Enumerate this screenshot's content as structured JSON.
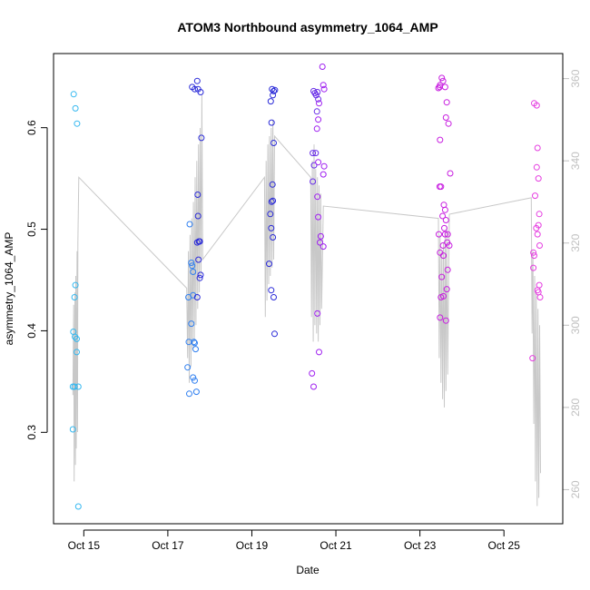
{
  "chart_data": {
    "type": "scatter",
    "title": "ATOM3 Northbound asymmetry_1064_AMP",
    "xlabel": "Date",
    "ylabel": "asymmetry_1064_AMP",
    "x_unit": "days (October)",
    "xlim": [
      14.28,
      26.4
    ],
    "ylim": [
      0.21,
      0.673
    ],
    "y2lim": [
      251.7,
      366.1
    ],
    "x_ticks": [
      {
        "value": 15,
        "label": "Oct 15"
      },
      {
        "value": 17,
        "label": "Oct 17"
      },
      {
        "value": 19,
        "label": "Oct 19"
      },
      {
        "value": 21,
        "label": "Oct 21"
      },
      {
        "value": 23,
        "label": "Oct 23"
      },
      {
        "value": 25,
        "label": "Oct 25"
      }
    ],
    "y_ticks": [
      0.3,
      0.4,
      0.5,
      0.6
    ],
    "y2_ticks": [
      260,
      280,
      300,
      320,
      340,
      360
    ],
    "grid": false,
    "point_colors": [
      "#35b8f0",
      "#2f7ff0",
      "#2a2ad8",
      "#6a2fe8",
      "#9f1ff0",
      "#c81ee0",
      "#e53ee0"
    ],
    "line_color": "#c8c8c8",
    "series": [
      {
        "color": "#35b8f0",
        "points": [
          [
            14.76,
            0.633
          ],
          [
            14.8,
            0.619
          ],
          [
            14.84,
            0.604
          ],
          [
            14.8,
            0.445
          ],
          [
            14.78,
            0.433
          ],
          [
            14.75,
            0.399
          ],
          [
            14.79,
            0.394
          ],
          [
            14.83,
            0.392
          ],
          [
            14.83,
            0.379
          ],
          [
            14.74,
            0.345
          ],
          [
            14.78,
            0.345
          ],
          [
            14.87,
            0.345
          ],
          [
            14.74,
            0.303
          ],
          [
            14.87,
            0.227
          ]
        ]
      },
      {
        "color": "#2f7ff0",
        "points": [
          [
            17.52,
            0.505
          ],
          [
            17.56,
            0.467
          ],
          [
            17.58,
            0.464
          ],
          [
            17.6,
            0.458
          ],
          [
            17.49,
            0.433
          ],
          [
            17.6,
            0.435
          ],
          [
            17.56,
            0.407
          ],
          [
            17.5,
            0.389
          ],
          [
            17.62,
            0.389
          ],
          [
            17.64,
            0.388
          ],
          [
            17.66,
            0.382
          ],
          [
            17.47,
            0.364
          ],
          [
            17.6,
            0.354
          ],
          [
            17.64,
            0.351
          ],
          [
            17.51,
            0.338
          ],
          [
            17.68,
            0.34
          ]
        ]
      },
      {
        "color": "#2a2ad8",
        "points": [
          [
            17.58,
            0.64
          ],
          [
            17.64,
            0.638
          ],
          [
            17.7,
            0.646
          ],
          [
            17.72,
            0.638
          ],
          [
            17.78,
            0.635
          ],
          [
            17.8,
            0.59
          ],
          [
            17.71,
            0.534
          ],
          [
            17.72,
            0.513
          ],
          [
            17.7,
            0.487
          ],
          [
            17.74,
            0.488
          ],
          [
            17.76,
            0.488
          ],
          [
            17.73,
            0.47
          ],
          [
            17.78,
            0.455
          ],
          [
            17.76,
            0.452
          ],
          [
            17.7,
            0.433
          ]
        ]
      },
      {
        "color": "#2a2ad8",
        "points": [
          [
            19.48,
            0.638
          ],
          [
            19.52,
            0.636
          ],
          [
            19.55,
            0.637
          ],
          [
            19.5,
            0.632
          ],
          [
            19.45,
            0.626
          ],
          [
            19.47,
            0.605
          ],
          [
            19.52,
            0.585
          ],
          [
            19.49,
            0.544
          ],
          [
            19.47,
            0.527
          ],
          [
            19.5,
            0.528
          ],
          [
            19.44,
            0.515
          ],
          [
            19.46,
            0.501
          ],
          [
            19.5,
            0.492
          ],
          [
            19.41,
            0.466
          ],
          [
            19.46,
            0.44
          ],
          [
            19.52,
            0.433
          ],
          [
            19.54,
            0.397
          ]
        ]
      },
      {
        "color": "#6a2fe8",
        "points": [
          [
            20.47,
            0.636
          ],
          [
            20.5,
            0.634
          ],
          [
            20.53,
            0.632
          ],
          [
            20.56,
            0.635
          ],
          [
            20.58,
            0.628
          ],
          [
            20.55,
            0.616
          ],
          [
            20.45,
            0.575
          ],
          [
            20.52,
            0.575
          ],
          [
            20.48,
            0.563
          ],
          [
            20.45,
            0.547
          ]
        ]
      },
      {
        "color": "#9f1ff0",
        "points": [
          [
            20.68,
            0.66
          ],
          [
            20.7,
            0.642
          ],
          [
            20.72,
            0.638
          ],
          [
            20.6,
            0.624
          ],
          [
            20.58,
            0.608
          ],
          [
            20.55,
            0.599
          ],
          [
            20.58,
            0.566
          ],
          [
            20.72,
            0.562
          ],
          [
            20.7,
            0.554
          ],
          [
            20.56,
            0.532
          ],
          [
            20.58,
            0.512
          ],
          [
            20.64,
            0.493
          ],
          [
            20.62,
            0.487
          ],
          [
            20.7,
            0.483
          ],
          [
            20.56,
            0.417
          ],
          [
            20.6,
            0.379
          ],
          [
            20.43,
            0.358
          ],
          [
            20.47,
            0.345
          ]
        ]
      },
      {
        "color": "#c81ee0",
        "points": [
          [
            23.48,
            0.642
          ],
          [
            23.52,
            0.649
          ],
          [
            23.55,
            0.646
          ],
          [
            23.6,
            0.64
          ],
          [
            23.44,
            0.639
          ],
          [
            23.47,
            0.64
          ],
          [
            23.64,
            0.625
          ],
          [
            23.62,
            0.61
          ],
          [
            23.68,
            0.604
          ],
          [
            23.48,
            0.588
          ],
          [
            23.72,
            0.555
          ],
          [
            23.47,
            0.542
          ],
          [
            23.5,
            0.542
          ],
          [
            23.57,
            0.524
          ],
          [
            23.6,
            0.519
          ],
          [
            23.54,
            0.513
          ],
          [
            23.62,
            0.509
          ],
          [
            23.58,
            0.501
          ],
          [
            23.45,
            0.495
          ],
          [
            23.6,
            0.495
          ],
          [
            23.66,
            0.495
          ],
          [
            23.65,
            0.487
          ],
          [
            23.55,
            0.484
          ],
          [
            23.7,
            0.484
          ],
          [
            23.48,
            0.477
          ],
          [
            23.56,
            0.474
          ],
          [
            23.66,
            0.46
          ],
          [
            23.52,
            0.453
          ],
          [
            23.64,
            0.441
          ],
          [
            23.56,
            0.434
          ],
          [
            23.5,
            0.433
          ],
          [
            23.48,
            0.413
          ],
          [
            23.62,
            0.41
          ]
        ]
      },
      {
        "color": "#e53ee0",
        "points": [
          [
            25.72,
            0.624
          ],
          [
            25.78,
            0.622
          ],
          [
            25.8,
            0.58
          ],
          [
            25.78,
            0.561
          ],
          [
            25.82,
            0.55
          ],
          [
            25.74,
            0.533
          ],
          [
            25.84,
            0.515
          ],
          [
            25.82,
            0.504
          ],
          [
            25.77,
            0.501
          ],
          [
            25.8,
            0.495
          ],
          [
            25.85,
            0.484
          ],
          [
            25.7,
            0.477
          ],
          [
            25.72,
            0.474
          ],
          [
            25.7,
            0.462
          ],
          [
            25.84,
            0.445
          ],
          [
            25.8,
            0.44
          ],
          [
            25.82,
            0.438
          ],
          [
            25.86,
            0.433
          ],
          [
            25.68,
            0.373
          ]
        ]
      }
    ],
    "line_series": {
      "axis": "right",
      "color": "#c8c8c8",
      "points": [
        [
          14.74,
          283
        ],
        [
          14.76,
          305
        ],
        [
          14.77,
          262
        ],
        [
          14.79,
          308
        ],
        [
          14.8,
          266
        ],
        [
          14.81,
          312
        ],
        [
          14.82,
          270
        ],
        [
          14.84,
          318
        ],
        [
          14.85,
          274
        ],
        [
          14.86,
          320
        ],
        [
          14.88,
          336
        ],
        [
          17.45,
          309
        ],
        [
          17.47,
          292
        ],
        [
          17.49,
          318
        ],
        [
          17.51,
          286
        ],
        [
          17.53,
          322
        ],
        [
          17.55,
          290
        ],
        [
          17.57,
          326
        ],
        [
          17.59,
          294
        ],
        [
          17.61,
          330
        ],
        [
          17.63,
          296
        ],
        [
          17.65,
          336
        ],
        [
          17.67,
          300
        ],
        [
          17.69,
          340
        ],
        [
          17.71,
          304
        ],
        [
          17.73,
          344
        ],
        [
          17.75,
          308
        ],
        [
          17.77,
          348
        ],
        [
          17.79,
          312
        ],
        [
          17.81,
          356
        ],
        [
          17.83,
          316
        ],
        [
          19.3,
          336
        ],
        [
          19.32,
          302
        ],
        [
          19.34,
          340
        ],
        [
          19.36,
          306
        ],
        [
          19.38,
          344
        ],
        [
          19.4,
          310
        ],
        [
          19.42,
          346
        ],
        [
          19.44,
          312
        ],
        [
          19.46,
          348
        ],
        [
          19.48,
          314
        ],
        [
          19.5,
          350
        ],
        [
          19.52,
          316
        ],
        [
          19.54,
          346
        ],
        [
          20.4,
          336
        ],
        [
          20.42,
          302
        ],
        [
          20.44,
          340
        ],
        [
          20.46,
          296
        ],
        [
          20.48,
          344
        ],
        [
          20.5,
          300
        ],
        [
          20.52,
          338
        ],
        [
          20.54,
          298
        ],
        [
          20.56,
          336
        ],
        [
          20.58,
          296
        ],
        [
          20.6,
          334
        ],
        [
          20.62,
          300
        ],
        [
          20.64,
          332
        ],
        [
          20.66,
          304
        ],
        [
          20.7,
          329
        ],
        [
          23.44,
          326
        ],
        [
          23.46,
          292
        ],
        [
          23.48,
          322
        ],
        [
          23.5,
          286
        ],
        [
          23.52,
          318
        ],
        [
          23.54,
          282
        ],
        [
          23.56,
          320
        ],
        [
          23.58,
          280
        ],
        [
          23.6,
          322
        ],
        [
          23.62,
          284
        ],
        [
          23.64,
          324
        ],
        [
          23.66,
          288
        ],
        [
          23.7,
          327
        ],
        [
          25.65,
          331
        ],
        [
          25.67,
          298
        ],
        [
          25.69,
          318
        ],
        [
          25.71,
          276
        ],
        [
          25.73,
          312
        ],
        [
          25.75,
          262
        ],
        [
          25.77,
          308
        ],
        [
          25.79,
          256
        ],
        [
          25.81,
          304
        ],
        [
          25.83,
          258
        ],
        [
          25.85,
          300
        ],
        [
          25.87,
          264
        ]
      ]
    }
  }
}
